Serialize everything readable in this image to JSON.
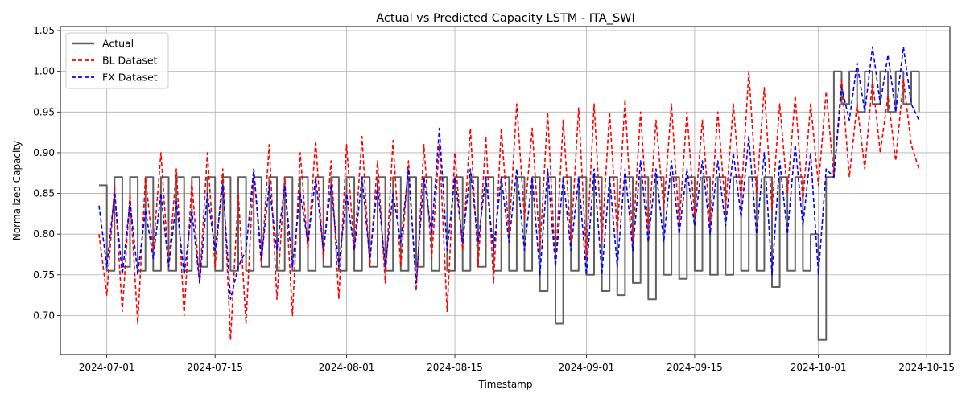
{
  "chart_data": {
    "type": "line",
    "title": "Actual vs Predicted Capacity LSTM - ITA_SWI",
    "xlabel": "Timestamp",
    "ylabel": "Normalized Capacity",
    "xlim": [
      "2024-06-25",
      "2024-10-18"
    ],
    "ylim": [
      0.652,
      1.055
    ],
    "x_ticks": [
      "2024-07-01",
      "2024-07-15",
      "2024-08-01",
      "2024-08-15",
      "2024-09-01",
      "2024-09-15",
      "2024-10-01",
      "2024-10-15"
    ],
    "y_ticks": [
      0.7,
      0.75,
      0.8,
      0.85,
      0.9,
      0.95,
      1.0,
      1.05
    ],
    "y_tick_labels": [
      "0.70",
      "0.75",
      "0.80",
      "0.85",
      "0.90",
      "0.95",
      "1.00",
      "1.05"
    ],
    "grid": true,
    "legend_position": "top-left",
    "sampling": "daily approximation of a high-frequency series",
    "x": [
      "2024-06-30",
      "2024-07-01",
      "2024-07-02",
      "2024-07-03",
      "2024-07-04",
      "2024-07-05",
      "2024-07-06",
      "2024-07-07",
      "2024-07-08",
      "2024-07-09",
      "2024-07-10",
      "2024-07-11",
      "2024-07-12",
      "2024-07-13",
      "2024-07-14",
      "2024-07-15",
      "2024-07-16",
      "2024-07-17",
      "2024-07-18",
      "2024-07-19",
      "2024-07-20",
      "2024-07-21",
      "2024-07-22",
      "2024-07-23",
      "2024-07-24",
      "2024-07-25",
      "2024-07-26",
      "2024-07-27",
      "2024-07-28",
      "2024-07-29",
      "2024-07-30",
      "2024-07-31",
      "2024-08-01",
      "2024-08-02",
      "2024-08-03",
      "2024-08-04",
      "2024-08-05",
      "2024-08-06",
      "2024-08-07",
      "2024-08-08",
      "2024-08-09",
      "2024-08-10",
      "2024-08-11",
      "2024-08-12",
      "2024-08-13",
      "2024-08-14",
      "2024-08-15",
      "2024-08-16",
      "2024-08-17",
      "2024-08-18",
      "2024-08-19",
      "2024-08-20",
      "2024-08-21",
      "2024-08-22",
      "2024-08-23",
      "2024-08-24",
      "2024-08-25",
      "2024-08-26",
      "2024-08-27",
      "2024-08-28",
      "2024-08-29",
      "2024-08-30",
      "2024-08-31",
      "2024-09-01",
      "2024-09-02",
      "2024-09-03",
      "2024-09-04",
      "2024-09-05",
      "2024-09-06",
      "2024-09-07",
      "2024-09-08",
      "2024-09-09",
      "2024-09-10",
      "2024-09-11",
      "2024-09-12",
      "2024-09-13",
      "2024-09-14",
      "2024-09-15",
      "2024-09-16",
      "2024-09-17",
      "2024-09-18",
      "2024-09-19",
      "2024-09-20",
      "2024-09-21",
      "2024-09-22",
      "2024-09-23",
      "2024-09-24",
      "2024-09-25",
      "2024-09-26",
      "2024-09-27",
      "2024-09-28",
      "2024-09-29",
      "2024-09-30",
      "2024-10-01",
      "2024-10-02",
      "2024-10-03",
      "2024-10-04",
      "2024-10-05",
      "2024-10-06",
      "2024-10-07",
      "2024-10-08",
      "2024-10-09",
      "2024-10-10",
      "2024-10-11",
      "2024-10-12",
      "2024-10-13",
      "2024-10-14"
    ],
    "series": [
      {
        "name": "Actual",
        "color": "#606060",
        "style": "solid",
        "values": [
          0.86,
          0.755,
          0.87,
          0.76,
          0.87,
          0.755,
          0.87,
          0.755,
          0.87,
          0.755,
          0.87,
          0.755,
          0.87,
          0.76,
          0.87,
          0.755,
          0.87,
          0.755,
          0.87,
          0.755,
          0.87,
          0.76,
          0.87,
          0.755,
          0.87,
          0.755,
          0.87,
          0.755,
          0.87,
          0.76,
          0.87,
          0.755,
          0.87,
          0.755,
          0.87,
          0.76,
          0.87,
          0.755,
          0.87,
          0.755,
          0.87,
          0.76,
          0.87,
          0.755,
          0.87,
          0.755,
          0.87,
          0.755,
          0.87,
          0.76,
          0.87,
          0.755,
          0.87,
          0.755,
          0.87,
          0.755,
          0.87,
          0.73,
          0.87,
          0.69,
          0.87,
          0.755,
          0.87,
          0.75,
          0.87,
          0.73,
          0.87,
          0.725,
          0.87,
          0.74,
          0.87,
          0.72,
          0.87,
          0.75,
          0.87,
          0.745,
          0.87,
          0.755,
          0.87,
          0.75,
          0.87,
          0.75,
          0.87,
          0.755,
          0.87,
          0.755,
          0.87,
          0.735,
          0.87,
          0.755,
          0.87,
          0.755,
          0.8,
          0.67,
          0.87,
          1.0,
          0.96,
          1.0,
          0.95,
          1.0,
          0.96,
          1.0,
          0.95,
          1.0,
          0.96,
          1.0,
          0.95
        ]
      },
      {
        "name": "BL Dataset",
        "color": "#ff0000",
        "style": "dashed",
        "values": [
          0.8,
          0.725,
          0.86,
          0.705,
          0.85,
          0.69,
          0.87,
          0.78,
          0.9,
          0.76,
          0.88,
          0.7,
          0.865,
          0.74,
          0.9,
          0.76,
          0.88,
          0.67,
          0.85,
          0.69,
          0.88,
          0.76,
          0.91,
          0.72,
          0.87,
          0.7,
          0.9,
          0.78,
          0.915,
          0.77,
          0.89,
          0.72,
          0.91,
          0.78,
          0.92,
          0.76,
          0.89,
          0.74,
          0.915,
          0.76,
          0.89,
          0.73,
          0.91,
          0.77,
          0.91,
          0.705,
          0.9,
          0.78,
          0.93,
          0.76,
          0.92,
          0.74,
          0.93,
          0.8,
          0.96,
          0.82,
          0.93,
          0.78,
          0.95,
          0.76,
          0.94,
          0.79,
          0.955,
          0.77,
          0.96,
          0.79,
          0.95,
          0.8,
          0.965,
          0.79,
          0.95,
          0.8,
          0.94,
          0.83,
          0.96,
          0.81,
          0.95,
          0.82,
          0.94,
          0.81,
          0.95,
          0.83,
          0.96,
          0.84,
          1.0,
          0.85,
          0.98,
          0.83,
          0.96,
          0.85,
          0.97,
          0.84,
          0.96,
          0.86,
          0.975,
          0.87,
          0.99,
          0.87,
          0.96,
          0.88,
          0.99,
          0.9,
          0.97,
          0.89,
          0.99,
          0.91,
          0.88
        ]
      },
      {
        "name": "FX Dataset",
        "color": "#0000ff",
        "style": "dashed",
        "values": [
          0.835,
          0.76,
          0.85,
          0.75,
          0.84,
          0.75,
          0.83,
          0.77,
          0.85,
          0.76,
          0.84,
          0.75,
          0.83,
          0.74,
          0.85,
          0.78,
          0.86,
          0.72,
          0.76,
          0.78,
          0.88,
          0.77,
          0.86,
          0.78,
          0.86,
          0.76,
          0.85,
          0.79,
          0.87,
          0.78,
          0.86,
          0.76,
          0.85,
          0.78,
          0.87,
          0.77,
          0.86,
          0.76,
          0.85,
          0.79,
          0.88,
          0.74,
          0.87,
          0.8,
          0.93,
          0.78,
          0.87,
          0.79,
          0.88,
          0.79,
          0.87,
          0.78,
          0.87,
          0.79,
          0.88,
          0.78,
          0.87,
          0.75,
          0.88,
          0.76,
          0.87,
          0.78,
          0.87,
          0.75,
          0.88,
          0.75,
          0.87,
          0.76,
          0.88,
          0.78,
          0.89,
          0.79,
          0.88,
          0.79,
          0.89,
          0.8,
          0.88,
          0.81,
          0.89,
          0.8,
          0.89,
          0.81,
          0.9,
          0.82,
          0.92,
          0.8,
          0.9,
          0.75,
          0.89,
          0.8,
          0.91,
          0.81,
          0.9,
          0.75,
          0.88,
          0.87,
          0.98,
          0.94,
          1.01,
          0.95,
          1.03,
          0.96,
          1.02,
          0.95,
          1.03,
          0.96,
          0.94
        ]
      }
    ]
  }
}
